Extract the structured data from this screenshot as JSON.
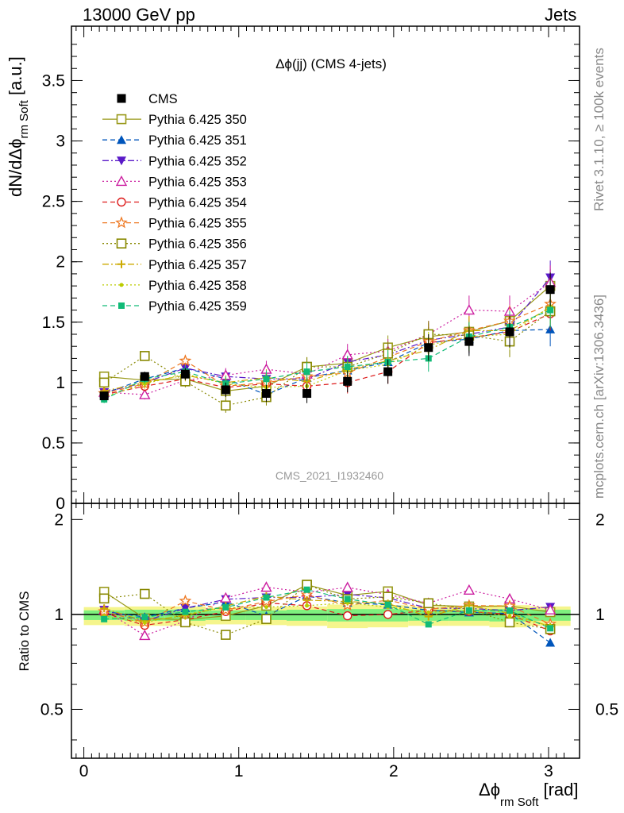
{
  "header": {
    "energy_label": "13000 GeV pp",
    "category_label": "Jets"
  },
  "side": {
    "rivet_label": "Rivet 3.1.10, ≥ 100k events",
    "mcplots_label": "mcplots.cern.ch [arXiv:1306.3436]"
  },
  "chart_data": {
    "type": "scatter",
    "title": "Δϕ(jj) (CMS 4-jets)",
    "watermark": "CMS_2021_I1932460",
    "xlabel": "Δϕ",
    "xlabel_sub": "rm Soft",
    "xlabel_unit": "[rad]",
    "ylabel": "dN/dΔϕ",
    "ylabel_sub": "rm Soft",
    "ylabel_unit": "[a.u.]",
    "ratio_ylabel": "Ratio to CMS",
    "xlim": [
      -0.08,
      3.2
    ],
    "ylim": [
      0,
      3.95
    ],
    "ratio_ylim": [
      0.35,
      2.25
    ],
    "x_ticks": [
      "0",
      "1",
      "2",
      "3"
    ],
    "y_ticks": [
      "0",
      "0.5",
      "1",
      "1.5",
      "2",
      "2.5",
      "3",
      "3.5"
    ],
    "ratio_y_ticks": [
      "0.5",
      "1",
      "2"
    ],
    "legend_position": "top-left",
    "x": [
      0.131,
      0.393,
      0.655,
      0.916,
      1.178,
      1.44,
      1.702,
      1.963,
      2.225,
      2.487,
      2.749,
      3.011
    ],
    "series": [
      {
        "name": "CMS",
        "color": "#000000",
        "marker": "square-filled",
        "line": "none",
        "values": [
          0.89,
          1.05,
          1.07,
          0.94,
          0.91,
          0.91,
          1.01,
          1.09,
          1.29,
          1.34,
          1.42,
          1.77
        ]
      },
      {
        "name": "Pythia 6.425 350",
        "color": "#99991a",
        "marker": "square-open",
        "line": "solid",
        "values": [
          1.05,
          1.02,
          1.03,
          0.93,
          0.97,
          1.13,
          1.16,
          1.29,
          1.38,
          1.42,
          1.51,
          1.8
        ]
      },
      {
        "name": "Pythia 6.425 351",
        "color": "#0055bb",
        "marker": "triangle-up",
        "line": "dashed",
        "values": [
          0.91,
          1.03,
          1.12,
          1.03,
          0.9,
          1.04,
          1.1,
          1.17,
          1.33,
          1.36,
          1.43,
          1.44
        ]
      },
      {
        "name": "Pythia 6.425 352",
        "color": "#5a1ac8",
        "marker": "triangle-down",
        "line": "dashdot",
        "values": [
          0.92,
          1.0,
          1.12,
          1.05,
          1.03,
          1.03,
          1.17,
          1.23,
          1.35,
          1.4,
          1.46,
          1.87
        ]
      },
      {
        "name": "Pythia 6.425 353",
        "color": "#cc1ea0",
        "marker": "triangle-up-open",
        "line": "dotted",
        "values": [
          0.92,
          0.9,
          1.02,
          1.06,
          1.11,
          1.07,
          1.23,
          1.26,
          1.4,
          1.6,
          1.59,
          1.83
        ]
      },
      {
        "name": "Pythia 6.425 354",
        "color": "#dd1c1c",
        "marker": "circle-open",
        "line": "dashed",
        "values": [
          0.9,
          0.97,
          1.03,
          0.96,
          0.99,
          0.97,
          1.0,
          1.09,
          1.33,
          1.37,
          1.42,
          1.57
        ]
      },
      {
        "name": "Pythia 6.425 355",
        "color": "#ee7720",
        "marker": "star-open",
        "line": "dashed",
        "values": [
          0.91,
          0.99,
          1.18,
          0.97,
          1.0,
          1.05,
          1.08,
          1.21,
          1.34,
          1.43,
          1.51,
          1.65
        ]
      },
      {
        "name": "Pythia 6.425 356",
        "color": "#888800",
        "marker": "square-open",
        "line": "dotted",
        "values": [
          1.0,
          1.22,
          1.01,
          0.81,
          0.88,
          1.13,
          1.13,
          1.24,
          1.4,
          1.39,
          1.34,
          1.59
        ]
      },
      {
        "name": "Pythia 6.425 357",
        "color": "#ccaa00",
        "marker": "tri",
        "line": "dashdot",
        "values": [
          0.93,
          1.0,
          1.06,
          1.0,
          1.04,
          1.01,
          1.11,
          1.18,
          1.27,
          1.43,
          1.43,
          1.62
        ]
      },
      {
        "name": "Pythia 6.425 358",
        "color": "#bbcc00",
        "marker": "dot",
        "line": "dotted",
        "values": [
          0.88,
          0.99,
          1.07,
          0.99,
          0.96,
          0.97,
          1.1,
          1.15,
          1.31,
          1.38,
          1.4,
          1.63
        ]
      },
      {
        "name": "Pythia 6.425 359",
        "color": "#11bb77",
        "marker": "square-small",
        "line": "dashed",
        "values": [
          0.86,
          1.03,
          1.09,
          0.99,
          1.03,
          1.09,
          1.13,
          1.17,
          1.2,
          1.38,
          1.46,
          1.6
        ]
      }
    ],
    "band_colors": {
      "inner": "#7ef07e",
      "outer": "#f5f58c"
    }
  }
}
